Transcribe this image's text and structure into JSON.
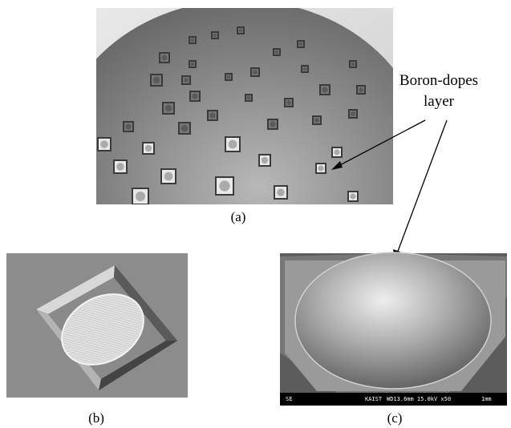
{
  "annotation": {
    "lines": [
      "Boron-dopes",
      "layer"
    ]
  },
  "panels": {
    "a": {
      "label": "(a)"
    },
    "b": {
      "label": "(b)"
    },
    "c": {
      "label": "(c)"
    }
  },
  "sem_bar": {
    "detector": "SE",
    "institution": "KAIST",
    "settings": "WD13.6mm 15.0kV x50",
    "scale": "1mm"
  }
}
